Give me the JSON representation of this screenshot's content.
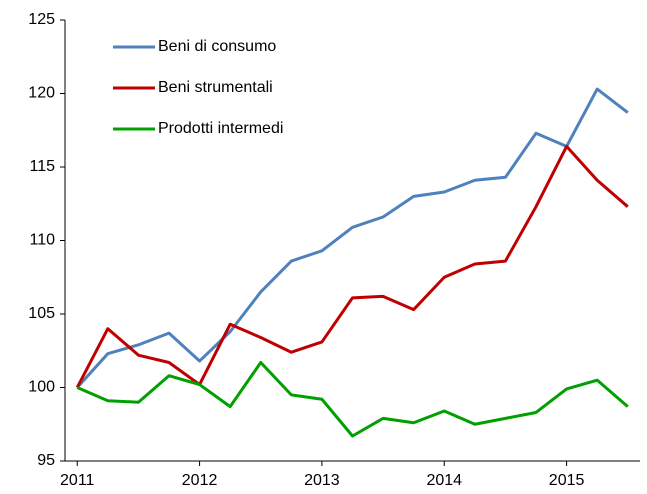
{
  "chart_data": {
    "type": "line",
    "x": [
      2011,
      2011.25,
      2011.5,
      2011.75,
      2012,
      2012.25,
      2012.5,
      2012.75,
      2013,
      2013.25,
      2013.5,
      2013.75,
      2014,
      2014.25,
      2014.5,
      2014.75,
      2015,
      2015.25,
      2015.5
    ],
    "series": [
      {
        "name": "Beni di consumo",
        "color": "#4f81bd",
        "values": [
          100,
          102.3,
          102.9,
          103.7,
          101.8,
          103.8,
          106.5,
          108.6,
          109.3,
          110.9,
          111.6,
          113.0,
          113.3,
          114.1,
          114.3,
          117.3,
          116.4,
          120.3,
          118.7
        ]
      },
      {
        "name": "Beni strumentali",
        "color": "#c00000",
        "values": [
          100,
          104.0,
          102.2,
          101.7,
          100.2,
          104.3,
          103.4,
          102.4,
          103.1,
          106.1,
          106.2,
          105.3,
          107.5,
          108.4,
          108.6,
          112.3,
          116.4,
          114.1,
          112.3
        ]
      },
      {
        "name": "Prodotti intermedi",
        "color": "#00a000",
        "values": [
          100,
          99.1,
          99.0,
          100.8,
          100.2,
          98.7,
          101.7,
          99.5,
          99.2,
          96.7,
          97.9,
          97.6,
          98.4,
          97.5,
          97.9,
          98.3,
          99.9,
          100.5,
          98.7
        ]
      }
    ],
    "xlim": [
      2010.9,
      2015.6
    ],
    "xticks": [
      2011,
      2012,
      2013,
      2014,
      2015
    ],
    "ylim": [
      95,
      125
    ],
    "yticks": [
      95,
      100,
      105,
      110,
      115,
      120,
      125
    ],
    "legend": "upper left"
  }
}
